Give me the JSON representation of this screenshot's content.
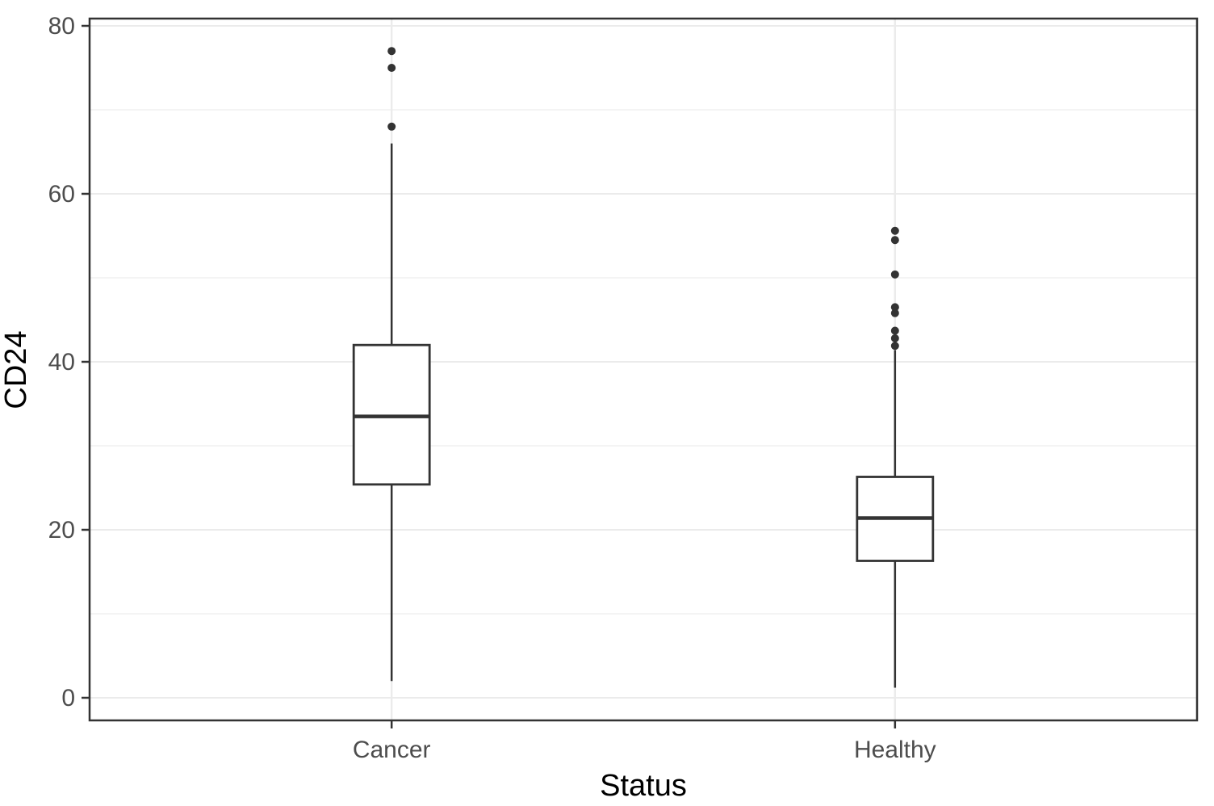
{
  "figure": {
    "background": "#FFFFFF"
  },
  "colors": {
    "panel_background": "#FFFFFF",
    "panel_border": "#333333",
    "grid_major": "#EBEBEB",
    "grid_minor": "#F2F2F2",
    "box_stroke": "#333333",
    "box_fill": "#FFFFFF",
    "outlier_fill": "#333333",
    "tick_mark": "#333333",
    "tick_label": "#4D4D4D",
    "axis_title": "#000000"
  },
  "chart_data": {
    "type": "boxplot",
    "title": "",
    "xlabel": "Status",
    "ylabel": "CD24",
    "categories": [
      "Cancer",
      "Healthy"
    ],
    "ylim": [
      0,
      80
    ],
    "yticks": [
      0,
      20,
      40,
      60,
      80
    ],
    "grid": "major-and-minor",
    "legend": "none",
    "series": [
      {
        "name": "Cancer",
        "whisker_low": 2.0,
        "q1": 25.4,
        "median": 33.5,
        "q3": 42.0,
        "whisker_high": 66.0,
        "outliers": [
          68.0,
          75.0,
          77.0
        ]
      },
      {
        "name": "Healthy",
        "whisker_low": 1.2,
        "q1": 16.3,
        "median": 21.4,
        "q3": 26.3,
        "whisker_high": 41.4,
        "outliers": [
          41.9,
          42.8,
          43.7,
          45.8,
          46.5,
          50.4,
          54.5,
          55.6
        ]
      }
    ]
  }
}
